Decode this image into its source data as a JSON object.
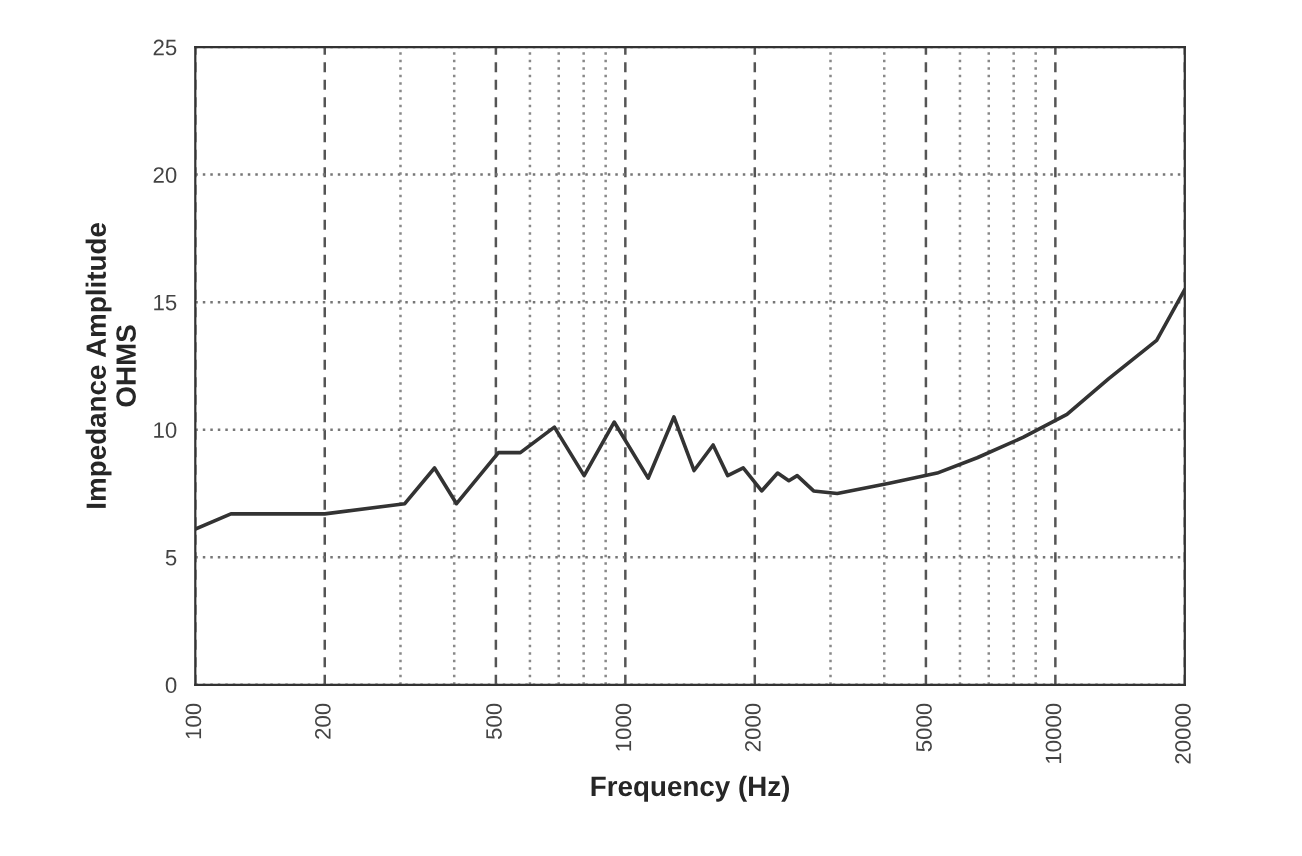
{
  "chart_data": {
    "type": "line",
    "xlabel": "Frequency (Hz)",
    "ylabel": "Impedance Amplitude\nOHMS",
    "log": "x",
    "grid": true,
    "x": [
      100,
      121,
      200,
      307,
      360,
      405,
      507,
      570,
      684,
      802,
      942,
      1130,
      1297,
      1445,
      1600,
      1730,
      1880,
      2075,
      2260,
      2400,
      2510,
      2740,
      3110,
      4110,
      5310,
      6580,
      8410,
      10640,
      13310,
      17200,
      20000
    ],
    "series": [
      {
        "color": "#333333",
        "values": [
          6.1,
          6.7,
          6.7,
          7.1,
          8.5,
          7.1,
          9.1,
          9.1,
          10.1,
          8.2,
          10.3,
          8.1,
          10.5,
          8.4,
          9.4,
          8.2,
          8.5,
          7.6,
          8.3,
          8.0,
          8.2,
          7.6,
          7.5,
          7.9,
          8.3,
          8.9,
          9.7,
          10.6,
          12.0,
          13.5,
          15.5
        ]
      }
    ],
    "xlim": [
      100,
      20000
    ],
    "ylim": [
      0,
      25
    ],
    "xticks": [
      100,
      200,
      {
        "value": 300,
        "label": null
      },
      {
        "value": 400,
        "label": null
      },
      500,
      {
        "value": 600,
        "label": null
      },
      {
        "value": 700,
        "label": null
      },
      {
        "value": 800,
        "label": null
      },
      {
        "value": 900,
        "label": null
      },
      1000,
      2000,
      {
        "value": 3000,
        "label": null
      },
      {
        "value": 4000,
        "label": null
      },
      5000,
      {
        "value": 6000,
        "label": null
      },
      {
        "value": 7000,
        "label": null
      },
      {
        "value": 8000,
        "label": null
      },
      {
        "value": 9000,
        "label": null
      },
      10000,
      20000
    ],
    "yticks": [
      0,
      5,
      10,
      15,
      20,
      25
    ],
    "marker": "none",
    "line_style": "solid"
  }
}
